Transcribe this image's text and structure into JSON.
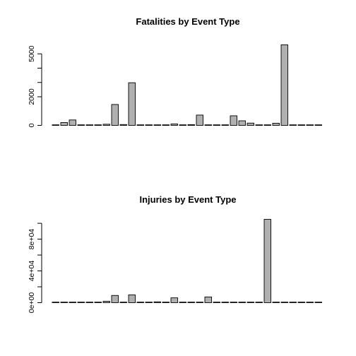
{
  "chart_data": [
    {
      "type": "bar",
      "title": "Fatalities by Event Type",
      "xlabel": "",
      "ylabel": "",
      "ylim": [
        0,
        5800
      ],
      "yticks": [
        0,
        2000,
        3000,
        4000,
        5000
      ],
      "ytick_labels": [
        "0",
        "2000",
        "",
        "",
        "5000"
      ],
      "values": [
        10,
        200,
        380,
        20,
        10,
        10,
        80,
        1460,
        60,
        2980,
        10,
        10,
        10,
        10,
        100,
        10,
        50,
        720,
        10,
        10,
        10,
        670,
        320,
        160,
        10,
        10,
        150,
        5630,
        30,
        30,
        30,
        30
      ]
    },
    {
      "type": "bar",
      "title": "Injuries by Event Type",
      "xlabel": "",
      "ylabel": "",
      "ylim": [
        0,
        105000
      ],
      "yticks": [
        0,
        20000,
        40000,
        60000,
        80000,
        100000
      ],
      "ytick_labels": [
        "0e+00",
        "",
        "4e+04",
        "",
        "8e+04",
        ""
      ],
      "values": [
        100,
        100,
        100,
        100,
        100,
        100,
        1800,
        9100,
        500,
        9800,
        200,
        200,
        1100,
        200,
        6100,
        200,
        200,
        200,
        7200,
        300,
        300,
        200,
        200,
        200,
        200,
        105000,
        200,
        200,
        200,
        200,
        200,
        200
      ]
    }
  ]
}
